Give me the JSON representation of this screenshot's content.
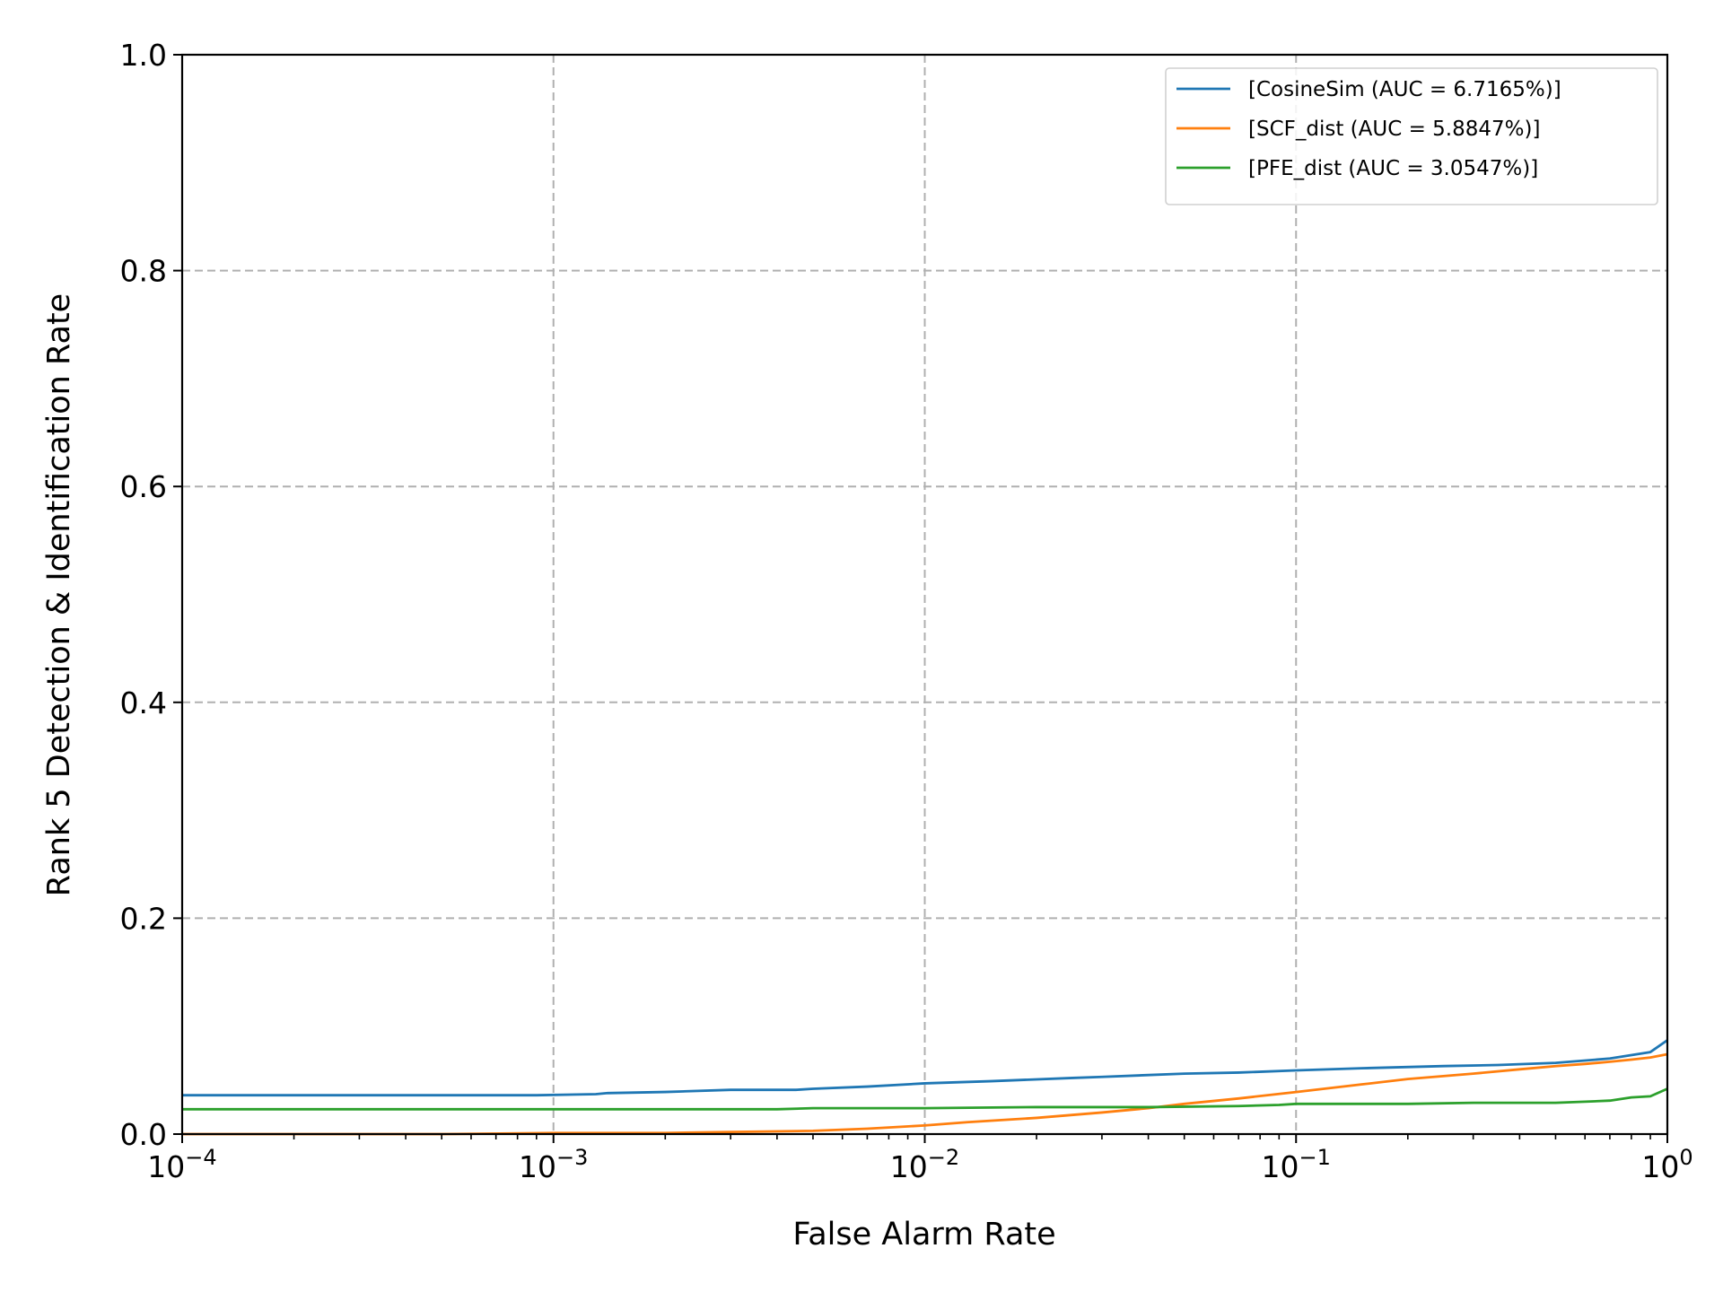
{
  "chart_data": {
    "type": "line",
    "title": "",
    "xlabel": "False Alarm Rate",
    "ylabel": "Rank 5 Detection & Identification Rate",
    "xscale": "log",
    "xlim": [
      0.0001,
      1
    ],
    "ylim": [
      0.0,
      1.0
    ],
    "grid": true,
    "legend_position": "top-right",
    "x_ticks": [
      {
        "value": 0.0001,
        "base": "10",
        "exp": "−4"
      },
      {
        "value": 0.001,
        "base": "10",
        "exp": "−3"
      },
      {
        "value": 0.01,
        "base": "10",
        "exp": "−2"
      },
      {
        "value": 0.1,
        "base": "10",
        "exp": "−1"
      },
      {
        "value": 1,
        "base": "10",
        "exp": "0"
      }
    ],
    "y_ticks": [
      {
        "value": 0.0,
        "label": "0.0"
      },
      {
        "value": 0.2,
        "label": "0.2"
      },
      {
        "value": 0.4,
        "label": "0.4"
      },
      {
        "value": 0.6,
        "label": "0.6"
      },
      {
        "value": 0.8,
        "label": "0.8"
      },
      {
        "value": 1.0,
        "label": "1.0"
      }
    ],
    "series": [
      {
        "name": "[CosineSim (AUC = 6.7165%)]",
        "color": "#1f77b4",
        "x": [
          0.0001,
          0.0003,
          0.0009,
          0.0013,
          0.0014,
          0.002,
          0.003,
          0.0045,
          0.005,
          0.007,
          0.01,
          0.015,
          0.025,
          0.03,
          0.05,
          0.07,
          0.1,
          0.15,
          0.25,
          0.35,
          0.5,
          0.7,
          0.9,
          1.0
        ],
        "y": [
          0.036,
          0.036,
          0.036,
          0.037,
          0.038,
          0.039,
          0.041,
          0.041,
          0.042,
          0.044,
          0.047,
          0.049,
          0.052,
          0.053,
          0.056,
          0.057,
          0.059,
          0.061,
          0.063,
          0.064,
          0.066,
          0.07,
          0.076,
          0.087
        ]
      },
      {
        "name": "[SCF_dist (AUC = 5.8847%)]",
        "color": "#ff7f0e",
        "x": [
          0.0001,
          0.0005,
          0.001,
          0.002,
          0.003,
          0.005,
          0.007,
          0.01,
          0.013,
          0.02,
          0.03,
          0.04,
          0.05,
          0.07,
          0.1,
          0.15,
          0.2,
          0.3,
          0.4,
          0.5,
          0.6,
          0.7,
          0.8,
          0.9,
          1.0
        ],
        "y": [
          0.0,
          0.0,
          0.001,
          0.001,
          0.002,
          0.003,
          0.005,
          0.008,
          0.011,
          0.015,
          0.02,
          0.024,
          0.028,
          0.033,
          0.039,
          0.046,
          0.051,
          0.056,
          0.06,
          0.063,
          0.065,
          0.067,
          0.069,
          0.071,
          0.074
        ]
      },
      {
        "name": "[PFE_dist (AUC = 3.0547%)]",
        "color": "#2ca02c",
        "x": [
          0.0001,
          0.001,
          0.0015,
          0.004,
          0.005,
          0.01,
          0.02,
          0.04,
          0.07,
          0.09,
          0.1,
          0.2,
          0.3,
          0.5,
          0.6,
          0.7,
          0.8,
          0.9,
          1.0
        ],
        "y": [
          0.023,
          0.023,
          0.023,
          0.023,
          0.024,
          0.024,
          0.025,
          0.025,
          0.026,
          0.027,
          0.028,
          0.028,
          0.029,
          0.029,
          0.03,
          0.031,
          0.034,
          0.035,
          0.042
        ]
      }
    ]
  }
}
